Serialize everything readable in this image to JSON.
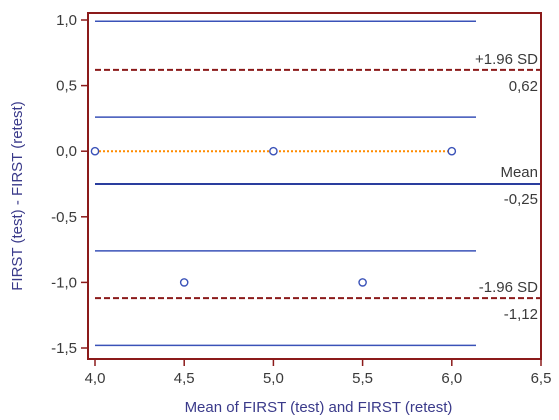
{
  "chart_data": {
    "type": "scatter",
    "xlabel": "Mean of FIRST (test) and FIRST (retest)",
    "ylabel": "FIRST (test) - FIRST (retest)",
    "xlim": [
      4.0,
      6.5
    ],
    "ylim": [
      -1.5,
      1.0
    ],
    "xticks": [
      4.0,
      4.5,
      5.0,
      5.5,
      6.0,
      6.5
    ],
    "yticks": [
      1.0,
      0.5,
      0.0,
      -0.5,
      -1.0,
      -1.5
    ],
    "xtick_labels": [
      "4,0",
      "4,5",
      "5,0",
      "5,5",
      "6,0",
      "6,5"
    ],
    "ytick_labels": [
      "1,0",
      "0,5",
      "0,0",
      "-0,5",
      "-1,0",
      "-1,5"
    ],
    "points": [
      {
        "x": 4.0,
        "y": 0.0
      },
      {
        "x": 5.0,
        "y": 0.0
      },
      {
        "x": 6.0,
        "y": 0.0
      },
      {
        "x": 4.5,
        "y": -1.0
      },
      {
        "x": 5.5,
        "y": -1.0
      }
    ],
    "upper_loa": {
      "value": 0.62,
      "label": "+1.96 SD",
      "value_label": "0,62"
    },
    "mean": {
      "value": -0.25,
      "label": "Mean",
      "value_label": "-0,25"
    },
    "lower_loa": {
      "value": -1.12,
      "label": "-1.96 SD",
      "value_label": "-1,12"
    },
    "ci_lines": [
      0.99,
      0.26,
      -0.76,
      -1.48
    ],
    "zero_line": 0.0,
    "colors": {
      "frame": "#8b1a1a",
      "ci_line": "#3a52b8",
      "mean_line": "#2a3e9e",
      "loa_line": "#8b1a1a",
      "zero_line": "#ff8c00",
      "point": "#3a52b8",
      "axis_title": "#3a3a8a",
      "tick_text": "#3a3a3a"
    }
  }
}
